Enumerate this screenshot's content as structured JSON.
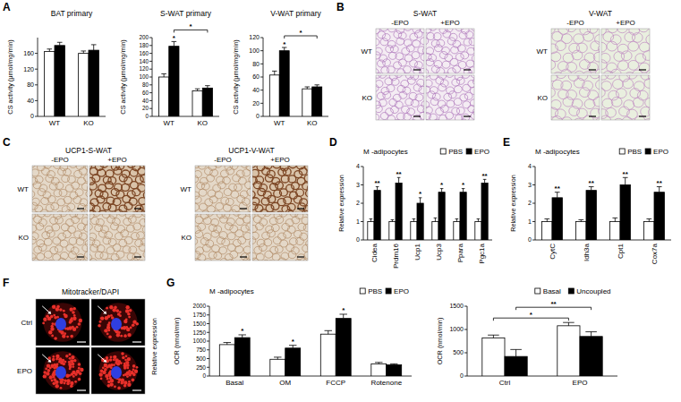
{
  "panel_labels": [
    "A",
    "B",
    "C",
    "D",
    "E",
    "F",
    "G"
  ],
  "chart_data": [
    {
      "type": "bar",
      "title": "BAT primary",
      "y_label": "CS activity (μmol/mg/min)",
      "categories": [
        "WT",
        "KO"
      ],
      "series": [
        {
          "color": "#ffffff",
          "values": [
            165,
            160
          ],
          "errors": [
            6,
            6
          ]
        },
        {
          "color": "#000000",
          "values": [
            180,
            168
          ],
          "errors": [
            8,
            14
          ]
        }
      ],
      "ylim": [
        0,
        200
      ],
      "yticks": [
        0,
        40,
        80,
        120,
        160
      ]
    },
    {
      "type": "bar",
      "title": "S-WAT primary",
      "y_label": "CS activity (μmol/mg/min)",
      "categories": [
        "WT",
        "KO"
      ],
      "series": [
        {
          "color": "#ffffff",
          "values": [
            100,
            65
          ],
          "errors": [
            8,
            5
          ]
        },
        {
          "color": "#000000",
          "values": [
            178,
            72
          ],
          "errors": [
            12,
            6
          ],
          "significance": [
            "*",
            null
          ],
          "bracket": "*"
        }
      ],
      "ylim": [
        0,
        200
      ],
      "yticks": [
        0,
        20,
        40,
        60,
        80,
        100,
        120,
        140,
        160,
        180,
        200
      ]
    },
    {
      "type": "bar",
      "title": "V-WAT primary",
      "y_label": "CS activity (μmol/mg/min)",
      "categories": [
        "WT",
        "KO"
      ],
      "series": [
        {
          "color": "#ffffff",
          "values": [
            63,
            42
          ],
          "errors": [
            6,
            3
          ]
        },
        {
          "color": "#000000",
          "values": [
            100,
            45
          ],
          "errors": [
            5,
            3
          ],
          "significance": [
            "*",
            null
          ],
          "bracket": "*"
        }
      ],
      "ylim": [
        0,
        120
      ],
      "yticks": [
        0,
        20,
        40,
        60,
        80,
        100,
        120
      ]
    },
    {
      "type": "bar",
      "title": "M -adipocytes",
      "y_label": "Relative expression",
      "categories": [
        "Cidea",
        "Prdm16",
        "Ucp1",
        "Ucp3",
        "Ppara",
        "Pgc1a"
      ],
      "series": [
        {
          "name": "PBS",
          "color": "#ffffff",
          "values": [
            1,
            1,
            1,
            1,
            1,
            1
          ],
          "errors": [
            0.15,
            0.1,
            0.15,
            0.2,
            0.15,
            0.15
          ]
        },
        {
          "name": "EPO",
          "color": "#000000",
          "values": [
            2.7,
            3.1,
            2.0,
            2.6,
            2.6,
            3.1
          ],
          "errors": [
            0.2,
            0.3,
            0.3,
            0.2,
            0.2,
            0.2
          ],
          "significance": [
            "**",
            "**",
            "*",
            "*",
            "*",
            "**"
          ]
        }
      ],
      "ylim": [
        0,
        4
      ],
      "yticks": [
        0,
        1,
        2,
        3,
        4
      ],
      "legend": "top-right"
    },
    {
      "type": "bar",
      "title": "M -adipocytes",
      "y_label": "Relative expression",
      "categories": [
        "CytC",
        "Idh3a",
        "Cpt1",
        "Cox7a"
      ],
      "series": [
        {
          "name": "PBS",
          "color": "#ffffff",
          "values": [
            1,
            1,
            1,
            1
          ],
          "errors": [
            0.15,
            0.1,
            0.2,
            0.15
          ]
        },
        {
          "name": "EPO",
          "color": "#000000",
          "values": [
            2.3,
            2.7,
            3.0,
            2.6
          ],
          "errors": [
            0.3,
            0.2,
            0.4,
            0.3
          ],
          "significance": [
            "**",
            "**",
            "**",
            "**"
          ]
        }
      ],
      "ylim": [
        0,
        4
      ],
      "yticks": [
        0,
        1,
        2,
        3,
        4
      ],
      "legend": "top-right"
    },
    {
      "type": "bar",
      "title": "M -adipocytes",
      "y_label": "OCR (nmol/min)",
      "categories": [
        "Basal",
        "OM",
        "FCCP",
        "Rotenone"
      ],
      "series": [
        {
          "name": "PBS",
          "color": "#ffffff",
          "values": [
            900,
            480,
            1200,
            350
          ],
          "errors": [
            60,
            60,
            100,
            40
          ]
        },
        {
          "name": "EPO",
          "color": "#000000",
          "values": [
            1100,
            800,
            1650,
            320
          ],
          "errors": [
            80,
            80,
            120,
            30
          ],
          "significance": [
            "*",
            "*",
            "*",
            null
          ]
        }
      ],
      "ylim": [
        0,
        2000
      ],
      "yticks": [
        0,
        250,
        500,
        750,
        1000,
        1250,
        1500,
        1750,
        2000
      ],
      "legend": "top-right"
    },
    {
      "type": "bar",
      "y_label": "OCR (nmol/min)",
      "categories": [
        "Ctrl",
        "EPO"
      ],
      "series": [
        {
          "name": "Basal",
          "color": "#ffffff",
          "values": [
            820,
            1080
          ],
          "errors": [
            60,
            70
          ],
          "bracket": "*"
        },
        {
          "name": "Uncoupled",
          "color": "#000000",
          "values": [
            420,
            850
          ],
          "errors": [
            150,
            100
          ],
          "bracket": "**"
        }
      ],
      "ylim": [
        0,
        1500
      ],
      "yticks": [
        0,
        500,
        1000,
        1500
      ],
      "legend": "top-right"
    }
  ],
  "image_panels": [
    {
      "title": "S-WAT",
      "columns": [
        "-EPO",
        "+EPO"
      ],
      "rows": [
        "WT",
        "KO"
      ]
    },
    {
      "title": "V-WAT",
      "columns": [
        "-EPO",
        "+EPO"
      ],
      "rows": [
        "WT",
        "KO"
      ]
    },
    {
      "title": "UCP1-S-WAT",
      "columns": [
        "-EPO",
        "+EPO"
      ],
      "rows": [
        "WT",
        "KO"
      ]
    },
    {
      "title": "UCP1-V-WAT",
      "columns": [
        "-EPO",
        "+EPO"
      ],
      "rows": [
        "WT",
        "KO"
      ]
    },
    {
      "title": "Mitotracker/DAPI",
      "rows": [
        "Ctrl",
        "EPO"
      ],
      "side_label": "Relative expression"
    }
  ]
}
